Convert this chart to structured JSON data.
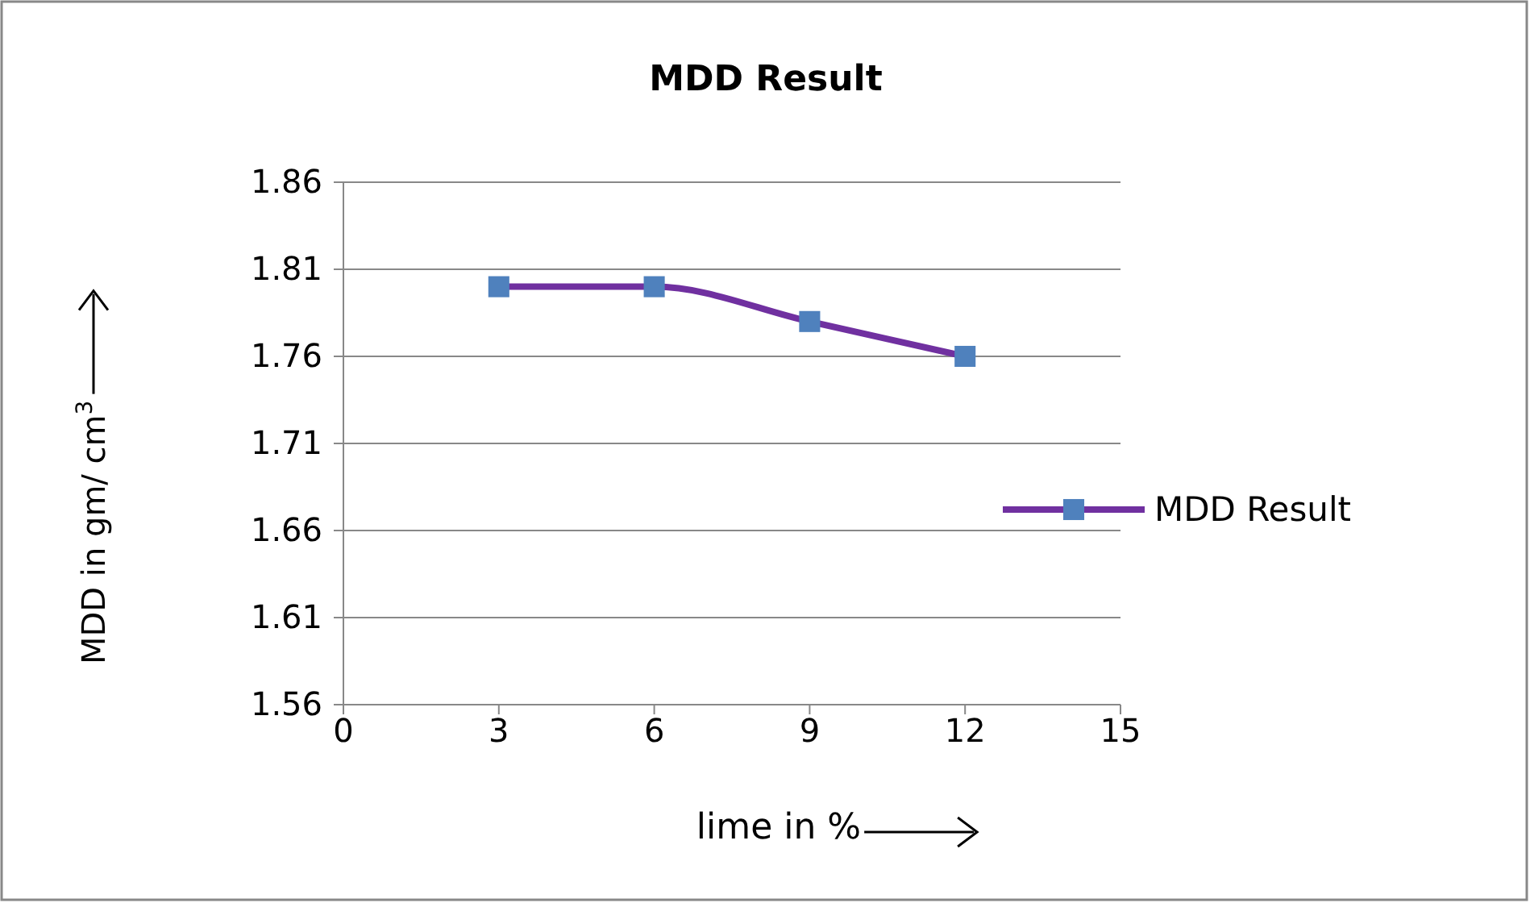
{
  "chart_data": {
    "type": "line",
    "title": "MDD Result",
    "xlabel": "lime in %",
    "ylabel": "MDD in gm/ cm$^{3}$",
    "x": [
      3,
      6,
      9,
      12
    ],
    "series": [
      {
        "name": "MDD Result",
        "color": "#7030a0",
        "values": [
          1.8,
          1.8,
          1.78,
          1.76
        ]
      }
    ],
    "xlim": [
      0,
      15
    ],
    "xticks": [
      0,
      3,
      6,
      9,
      12,
      15
    ],
    "ylim": [
      1.56,
      1.86
    ],
    "yticks": [
      {
        "value": 1.56,
        "label": "1.56"
      },
      {
        "value": 1.61,
        "label": "1.61"
      },
      {
        "value": 1.66,
        "label": "1.66"
      },
      {
        "value": 1.71,
        "label": "1.71"
      },
      {
        "value": 1.76,
        "label": "1.76"
      },
      {
        "value": 1.81,
        "label": "1.81"
      },
      {
        "value": 1.86,
        "label": "1.86"
      }
    ],
    "grid": "y",
    "legend": "right",
    "marker": "square",
    "line_style": "solid"
  }
}
